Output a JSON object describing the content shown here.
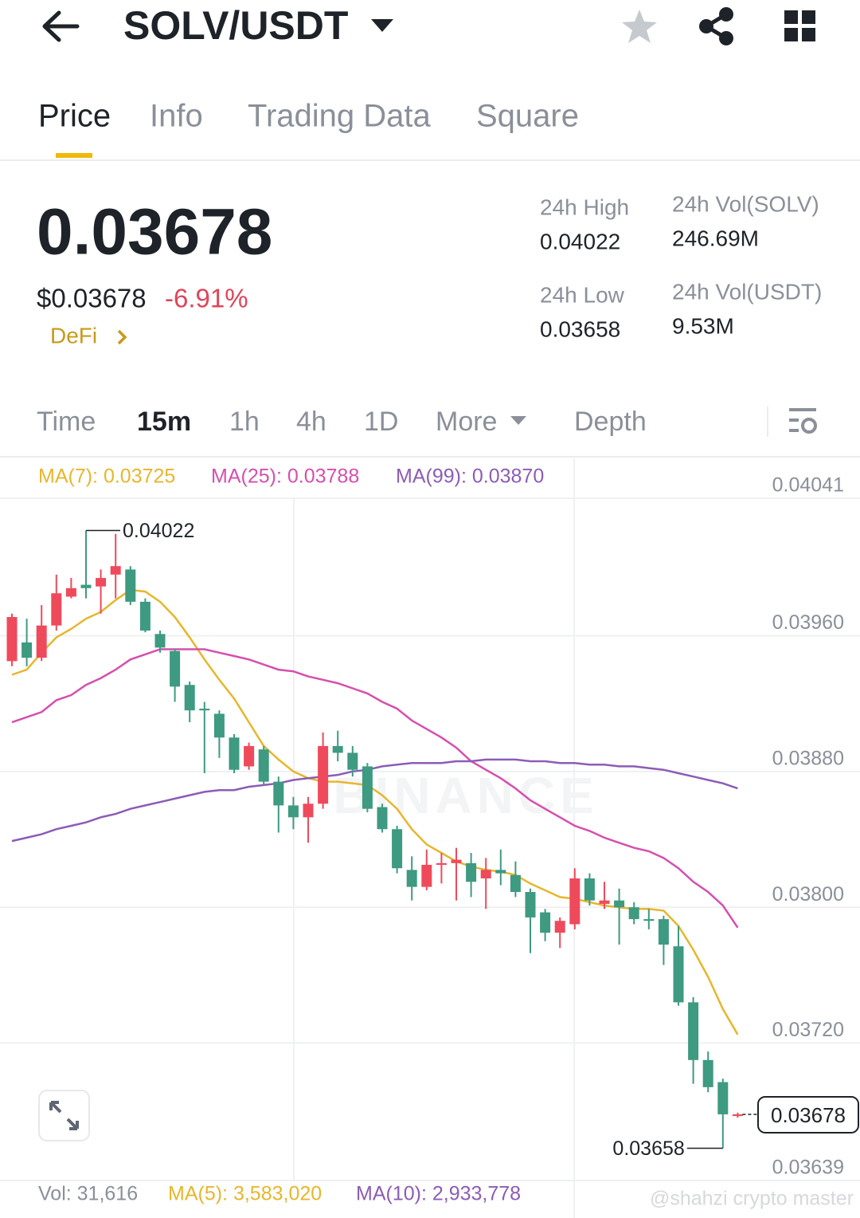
{
  "header": {
    "title": "SOLV/USDT"
  },
  "tabs": [
    "Price",
    "Info",
    "Trading Data",
    "Square"
  ],
  "price": {
    "last": "0.03678",
    "usd": "$0.03678",
    "change": "-6.91%",
    "tag": "DeFi"
  },
  "stats": [
    {
      "label": "24h High",
      "value": "0.04022"
    },
    {
      "label": "24h Vol(SOLV)",
      "value": "246.69M"
    },
    {
      "label": "24h Low",
      "value": "0.03658"
    },
    {
      "label": "24h Vol(USDT)",
      "value": "9.53M"
    }
  ],
  "intervals": [
    "Time",
    "15m",
    "1h",
    "4h",
    "1D",
    "More",
    "Depth"
  ],
  "chart_data": {
    "type": "candlestick",
    "up_color": "#ef4a5b",
    "down_color": "#3e9a81",
    "ylim": [
      0.03639,
      0.04041
    ],
    "yticks": [
      {
        "value": 0.04041,
        "label": "0.04041"
      },
      {
        "value": 0.0396,
        "label": "0.03960"
      },
      {
        "value": 0.0388,
        "label": "0.03880"
      },
      {
        "value": 0.038,
        "label": "0.03800"
      },
      {
        "value": 0.0372,
        "label": "0.03720"
      },
      {
        "value": 0.03639,
        "label": "0.03639"
      }
    ],
    "grid": true,
    "open": [
      0.03945,
      0.03956,
      0.03947,
      0.03966,
      0.03983,
      0.0399,
      0.03989,
      0.03996,
      0.03999,
      0.0398,
      0.03961,
      0.03951,
      0.03931,
      0.03917,
      0.03914,
      0.039,
      0.03883,
      0.03893,
      0.03874,
      0.0386,
      0.03853,
      0.03861,
      0.03895,
      0.03891,
      0.03883,
      0.03859,
      0.03846,
      0.03822,
      0.03812,
      0.03825,
      0.03826,
      0.03826,
      0.03817,
      0.03822,
      0.03819,
      0.03809,
      0.03797,
      0.03785,
      0.0379,
      0.03817,
      0.03802,
      0.03804,
      0.038,
      0.03793,
      0.03793,
      0.03777,
      0.03744,
      0.0371,
      0.03697,
      0.03677
    ],
    "high": [
      0.03973,
      0.0397,
      0.03978,
      0.03996,
      0.03994,
      0.04022,
      0.03999,
      0.0402,
      0.04001,
      0.03982,
      0.03963,
      0.03952,
      0.03933,
      0.03921,
      0.03916,
      0.03902,
      0.03897,
      0.03895,
      0.03877,
      0.03865,
      0.03865,
      0.03903,
      0.03904,
      0.03895,
      0.03885,
      0.03861,
      0.03848,
      0.0383,
      0.03834,
      0.03832,
      0.03835,
      0.03832,
      0.03829,
      0.03834,
      0.03827,
      0.03811,
      0.03799,
      0.03794,
      0.03823,
      0.0382,
      0.03815,
      0.03811,
      0.03803,
      0.03799,
      0.03795,
      0.03789,
      0.03747,
      0.03715,
      0.03699,
      0.03679
    ],
    "low": [
      0.03942,
      0.03942,
      0.03945,
      0.03963,
      0.03982,
      0.03982,
      0.03973,
      0.03982,
      0.03978,
      0.03962,
      0.0395,
      0.03921,
      0.03909,
      0.03879,
      0.03888,
      0.03879,
      0.03881,
      0.03872,
      0.03844,
      0.03846,
      0.03838,
      0.03858,
      0.03886,
      0.03877,
      0.03856,
      0.03844,
      0.0382,
      0.03804,
      0.0381,
      0.03814,
      0.03804,
      0.03806,
      0.03799,
      0.03813,
      0.03806,
      0.03773,
      0.0378,
      0.03776,
      0.03787,
      0.03801,
      0.03799,
      0.03778,
      0.0379,
      0.03787,
      0.03766,
      0.03742,
      0.03696,
      0.03691,
      0.03658,
      0.03676
    ],
    "close": [
      0.03971,
      0.03947,
      0.03966,
      0.03985,
      0.03988,
      0.03988,
      0.03994,
      0.04001,
      0.0398,
      0.03963,
      0.03953,
      0.0393,
      0.03916,
      0.03916,
      0.039,
      0.03881,
      0.03895,
      0.03874,
      0.0386,
      0.03853,
      0.03861,
      0.03895,
      0.03891,
      0.03881,
      0.03858,
      0.03846,
      0.03823,
      0.03812,
      0.03825,
      0.03826,
      0.03828,
      0.03815,
      0.03822,
      0.0382,
      0.03809,
      0.03794,
      0.03785,
      0.03792,
      0.03817,
      0.03804,
      0.03804,
      0.038,
      0.03793,
      0.03792,
      0.03778,
      0.03744,
      0.0371,
      0.03694,
      0.03678,
      0.03678
    ],
    "series": [
      {
        "name": "MA(7): 0.03725",
        "color": "#e8b62c",
        "values": [
          0.03937,
          0.0394,
          0.0395,
          0.03959,
          0.03964,
          0.0397,
          0.03974,
          0.03981,
          0.03987,
          0.03986,
          0.0398,
          0.03971,
          0.03959,
          0.03946,
          0.03934,
          0.03923,
          0.03909,
          0.03895,
          0.03887,
          0.0388,
          0.03876,
          0.03874,
          0.03874,
          0.03873,
          0.03872,
          0.03866,
          0.03858,
          0.03846,
          0.03837,
          0.03832,
          0.03827,
          0.03824,
          0.03822,
          0.03821,
          0.03819,
          0.03814,
          0.0381,
          0.03806,
          0.03805,
          0.03803,
          0.03801,
          0.038,
          0.03799,
          0.03799,
          0.03798,
          0.03789,
          0.03775,
          0.03759,
          0.0374,
          0.03725
        ]
      },
      {
        "name": "MA(25): 0.03788",
        "color": "#d64fae",
        "values": [
          0.03909,
          0.03912,
          0.03915,
          0.03922,
          0.03925,
          0.03931,
          0.03935,
          0.0394,
          0.03946,
          0.03949,
          0.03952,
          0.03952,
          0.03952,
          0.03952,
          0.0395,
          0.03948,
          0.03946,
          0.03943,
          0.0394,
          0.03939,
          0.03936,
          0.03934,
          0.03932,
          0.03929,
          0.03926,
          0.03921,
          0.03917,
          0.0391,
          0.03905,
          0.039,
          0.03894,
          0.03886,
          0.03881,
          0.03876,
          0.0387,
          0.03863,
          0.03858,
          0.03853,
          0.03848,
          0.03845,
          0.03841,
          0.03838,
          0.03835,
          0.03833,
          0.03829,
          0.03823,
          0.03815,
          0.03809,
          0.03801,
          0.03788
        ]
      },
      {
        "name": "MA(99): 0.03870",
        "color": "#8c5cb6",
        "values": [
          0.03839,
          0.03841,
          0.03843,
          0.03846,
          0.03848,
          0.0385,
          0.03853,
          0.03855,
          0.03858,
          0.0386,
          0.03862,
          0.03864,
          0.03866,
          0.03868,
          0.03869,
          0.03869,
          0.03871,
          0.03872,
          0.03873,
          0.03875,
          0.03876,
          0.03877,
          0.03878,
          0.0388,
          0.03881,
          0.03883,
          0.03884,
          0.03885,
          0.03885,
          0.03885,
          0.03886,
          0.03886,
          0.03887,
          0.03887,
          0.03887,
          0.03886,
          0.03886,
          0.03885,
          0.03885,
          0.03884,
          0.03884,
          0.03883,
          0.03883,
          0.03882,
          0.03881,
          0.03879,
          0.03877,
          0.03875,
          0.03873,
          0.0387
        ]
      }
    ],
    "annotations": {
      "high": "0.04022",
      "low": "0.03658",
      "last": "0.03678"
    }
  },
  "volume": [
    "Vol: 31,616",
    "MA(5): 3,583,020",
    "MA(10): 2,933,778"
  ],
  "chart_watermark": "BINANCE",
  "watermark": "@shahzi crypto master"
}
